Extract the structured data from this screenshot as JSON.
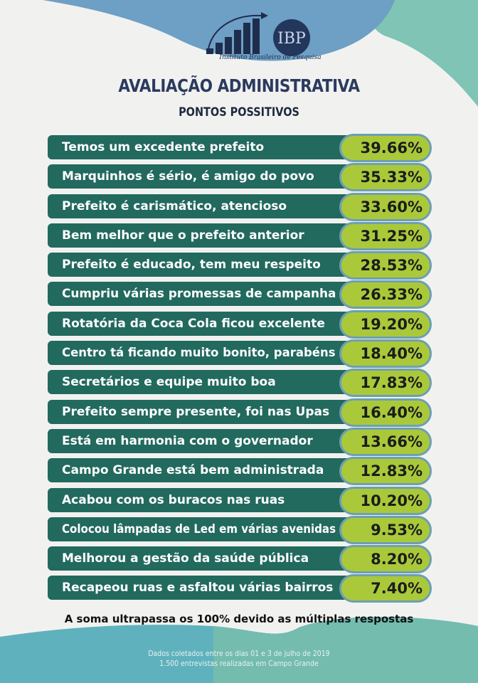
{
  "brand": {
    "logo_text": "IBP",
    "name": "Instituto Brasileiro de Pesquisa"
  },
  "header": {
    "title": "AVALIAÇÃO ADMINISTRATIVA",
    "subtitle": "PONTOS POSSITIVOS"
  },
  "items": [
    {
      "label": "Temos um excedente prefeito",
      "value": "39.66%"
    },
    {
      "label": "Marquinhos é sério, é amigo do povo",
      "value": "35.33%"
    },
    {
      "label": "Prefeito é carismático, atencioso",
      "value": "33.60%"
    },
    {
      "label": "Bem melhor que o prefeito anterior",
      "value": "31.25%"
    },
    {
      "label": "Prefeito é educado, tem meu respeito",
      "value": "28.53%"
    },
    {
      "label": "Cumpriu várias promessas de campanha",
      "value": "26.33%"
    },
    {
      "label": "Rotatória da Coca Cola ficou excelente",
      "value": "19.20%"
    },
    {
      "label": "Centro tá ficando muito bonito, parabéns",
      "value": "18.40%"
    },
    {
      "label": "Secretários e equipe muito boa",
      "value": "17.83%"
    },
    {
      "label": "Prefeito sempre presente, foi nas Upas",
      "value": "16.40%"
    },
    {
      "label": "Está em harmonia com o governador",
      "value": "13.66%"
    },
    {
      "label": "Campo Grande está bem administrada",
      "value": "12.83%"
    },
    {
      "label": "Acabou com os buracos nas ruas",
      "value": "10.20%"
    },
    {
      "label": "Colocou lâmpadas de Led em várias avenidas",
      "value": "9.53%"
    },
    {
      "label": "Melhorou a gestão da saúde pública",
      "value": "8.20%"
    },
    {
      "label": "Recapeou ruas e asfaltou várias bairros",
      "value": "7.40%"
    }
  ],
  "note": "A soma ultrapassa os 100% devido as múltiplas respostas",
  "footer": {
    "line1": "Dados coletados entre os dias 01 e 3 de julho de 2019",
    "line2": "1.500 entrevistas realizadas em Campo Grande"
  },
  "colors": {
    "bar": "#22695e",
    "pill": "#a9c93a",
    "pill_border": "#6d9fb3",
    "title": "#2b3a5e"
  }
}
